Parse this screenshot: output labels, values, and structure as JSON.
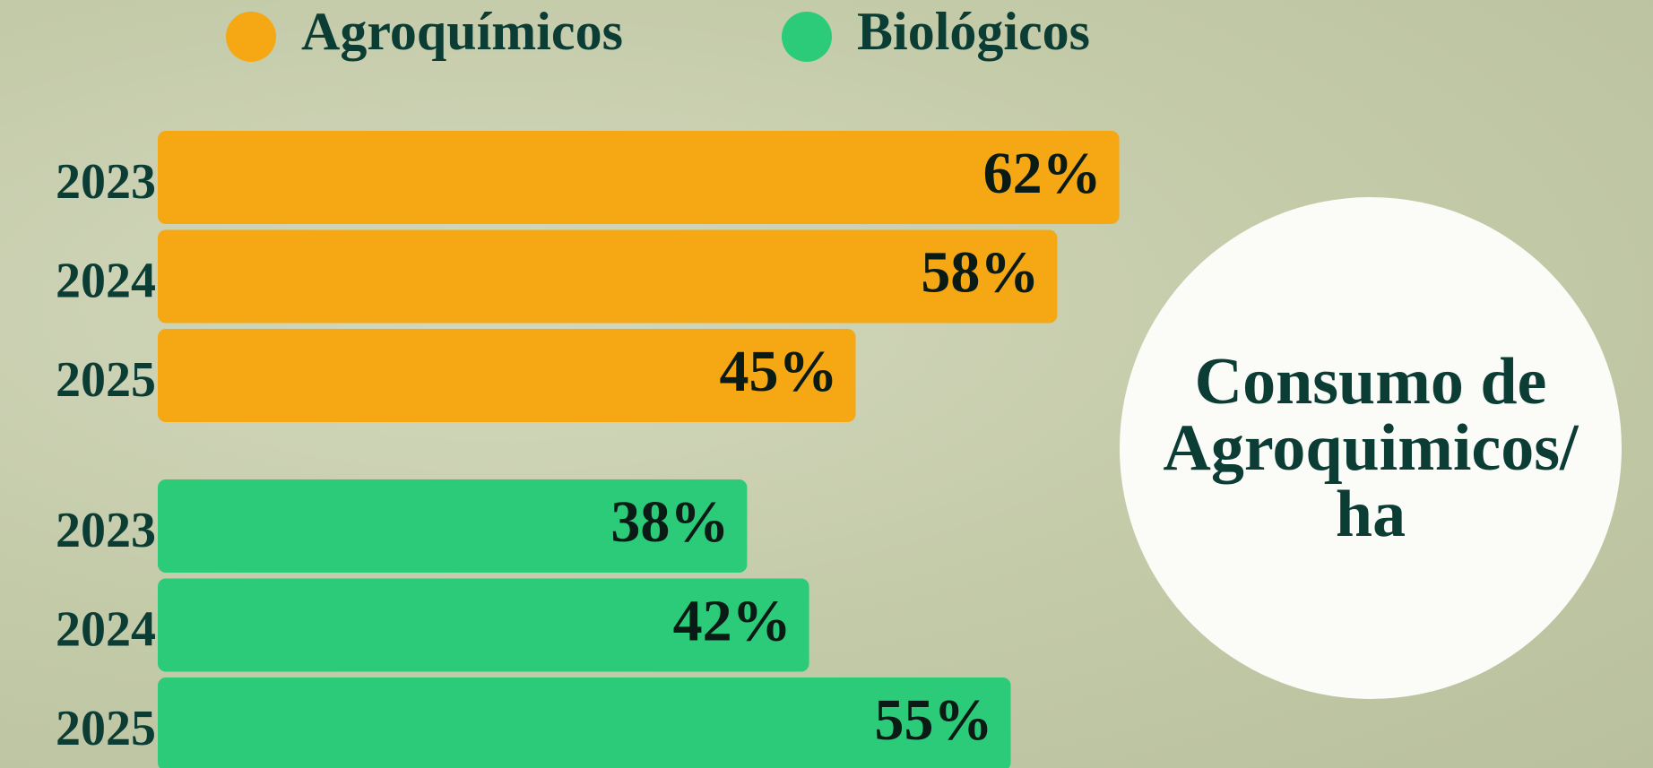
{
  "chart_data": {
    "type": "bar",
    "title": "Consumo de Agroquimicos/ ha",
    "categories": [
      "2023",
      "2024",
      "2025"
    ],
    "series": [
      {
        "name": "Agroquímicos",
        "color": "#f5a714",
        "values": [
          62,
          58,
          45
        ],
        "value_labels": [
          "62%",
          "58%",
          "45%"
        ]
      },
      {
        "name": "Biológicos",
        "color": "#2ccb79",
        "values": [
          38,
          42,
          55
        ],
        "value_labels": [
          "38%",
          "42%",
          "55%"
        ]
      }
    ],
    "legend": "top"
  }
}
